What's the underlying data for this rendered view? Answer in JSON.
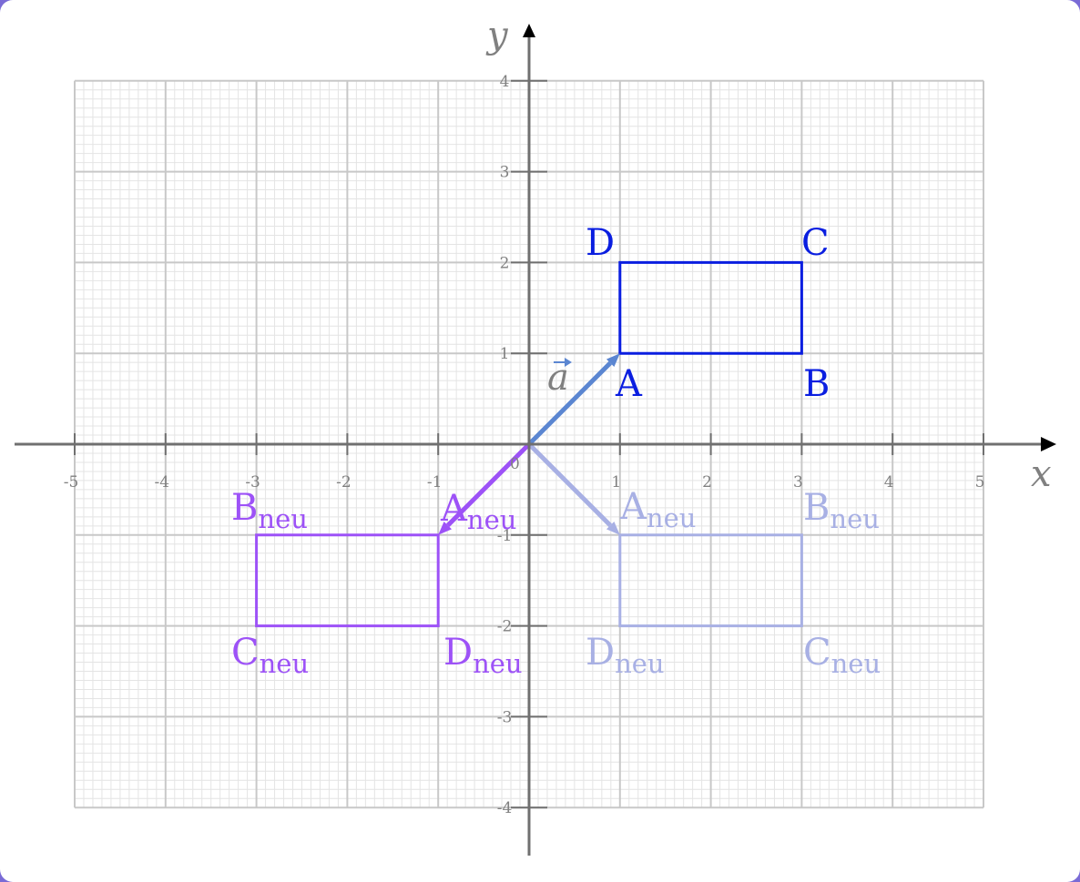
{
  "axes": {
    "x_label": "x",
    "y_label": "y",
    "x_ticks": [
      "-5",
      "-4",
      "-3",
      "-2",
      "-1",
      "1",
      "2",
      "3",
      "4",
      "5"
    ],
    "y_ticks": [
      "4",
      "3",
      "2",
      "1",
      "-1",
      "-2",
      "-3",
      "-4"
    ],
    "origin_label": "0",
    "xlim": [
      -5,
      5
    ],
    "ylim": [
      -4,
      4
    ]
  },
  "vector": {
    "label": "a",
    "from": [
      0,
      0
    ],
    "to": [
      1,
      1
    ],
    "color": "#5b86d1"
  },
  "rectangles": {
    "original": {
      "color": "#0a1ee0",
      "points": {
        "A": {
          "label": "A",
          "sub": "",
          "x": 1,
          "y": 1
        },
        "B": {
          "label": "B",
          "sub": "",
          "x": 3,
          "y": 1
        },
        "C": {
          "label": "C",
          "sub": "",
          "x": 3,
          "y": 2
        },
        "D": {
          "label": "D",
          "sub": "",
          "x": 1,
          "y": 2
        }
      }
    },
    "point_reflection": {
      "color": "#9d52f7",
      "points": {
        "A": {
          "label": "A",
          "sub": "neu",
          "x": -1,
          "y": -1
        },
        "B": {
          "label": "B",
          "sub": "neu",
          "x": -3,
          "y": -1
        },
        "C": {
          "label": "C",
          "sub": "neu",
          "x": -3,
          "y": -2
        },
        "D": {
          "label": "D",
          "sub": "neu",
          "x": -1,
          "y": -2
        }
      }
    },
    "axis_reflection": {
      "color": "#a8b0e4",
      "points": {
        "A": {
          "label": "A",
          "sub": "neu",
          "x": 1,
          "y": -1
        },
        "B": {
          "label": "B",
          "sub": "neu",
          "x": 3,
          "y": -1
        },
        "C": {
          "label": "C",
          "sub": "neu",
          "x": 3,
          "y": -2
        },
        "D": {
          "label": "D",
          "sub": "neu",
          "x": 1,
          "y": -2
        }
      }
    }
  }
}
